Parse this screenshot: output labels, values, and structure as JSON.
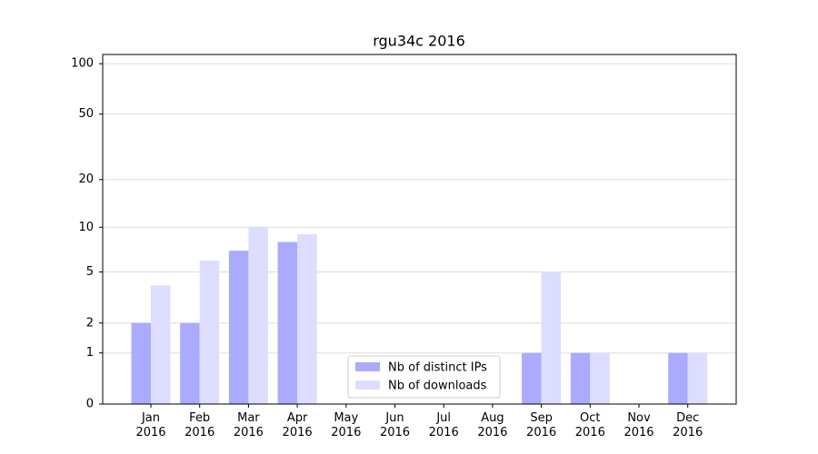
{
  "chart_data": {
    "type": "bar",
    "title": "rgu34c 2016",
    "categories": [
      "Jan 2016",
      "Feb 2016",
      "Mar 2016",
      "Apr 2016",
      "May 2016",
      "Jun 2016",
      "Jul 2016",
      "Aug 2016",
      "Sep 2016",
      "Oct 2016",
      "Nov 2016",
      "Dec 2016"
    ],
    "series": [
      {
        "name": "Nb of distinct IPs",
        "color": "#aaaaff",
        "values": [
          2,
          2,
          7,
          8,
          0,
          0,
          0,
          0,
          1,
          1,
          0,
          1
        ]
      },
      {
        "name": "Nb of downloads",
        "color": "#ddddff",
        "values": [
          4,
          6,
          10,
          9,
          0,
          0,
          0,
          0,
          5,
          1,
          0,
          1
        ]
      }
    ],
    "ylim": [
      0,
      113.5
    ],
    "yticks": [
      0,
      1,
      2,
      5,
      10,
      20,
      50,
      100
    ],
    "yscale": "log1p",
    "grid": true,
    "legend": "lower center"
  }
}
